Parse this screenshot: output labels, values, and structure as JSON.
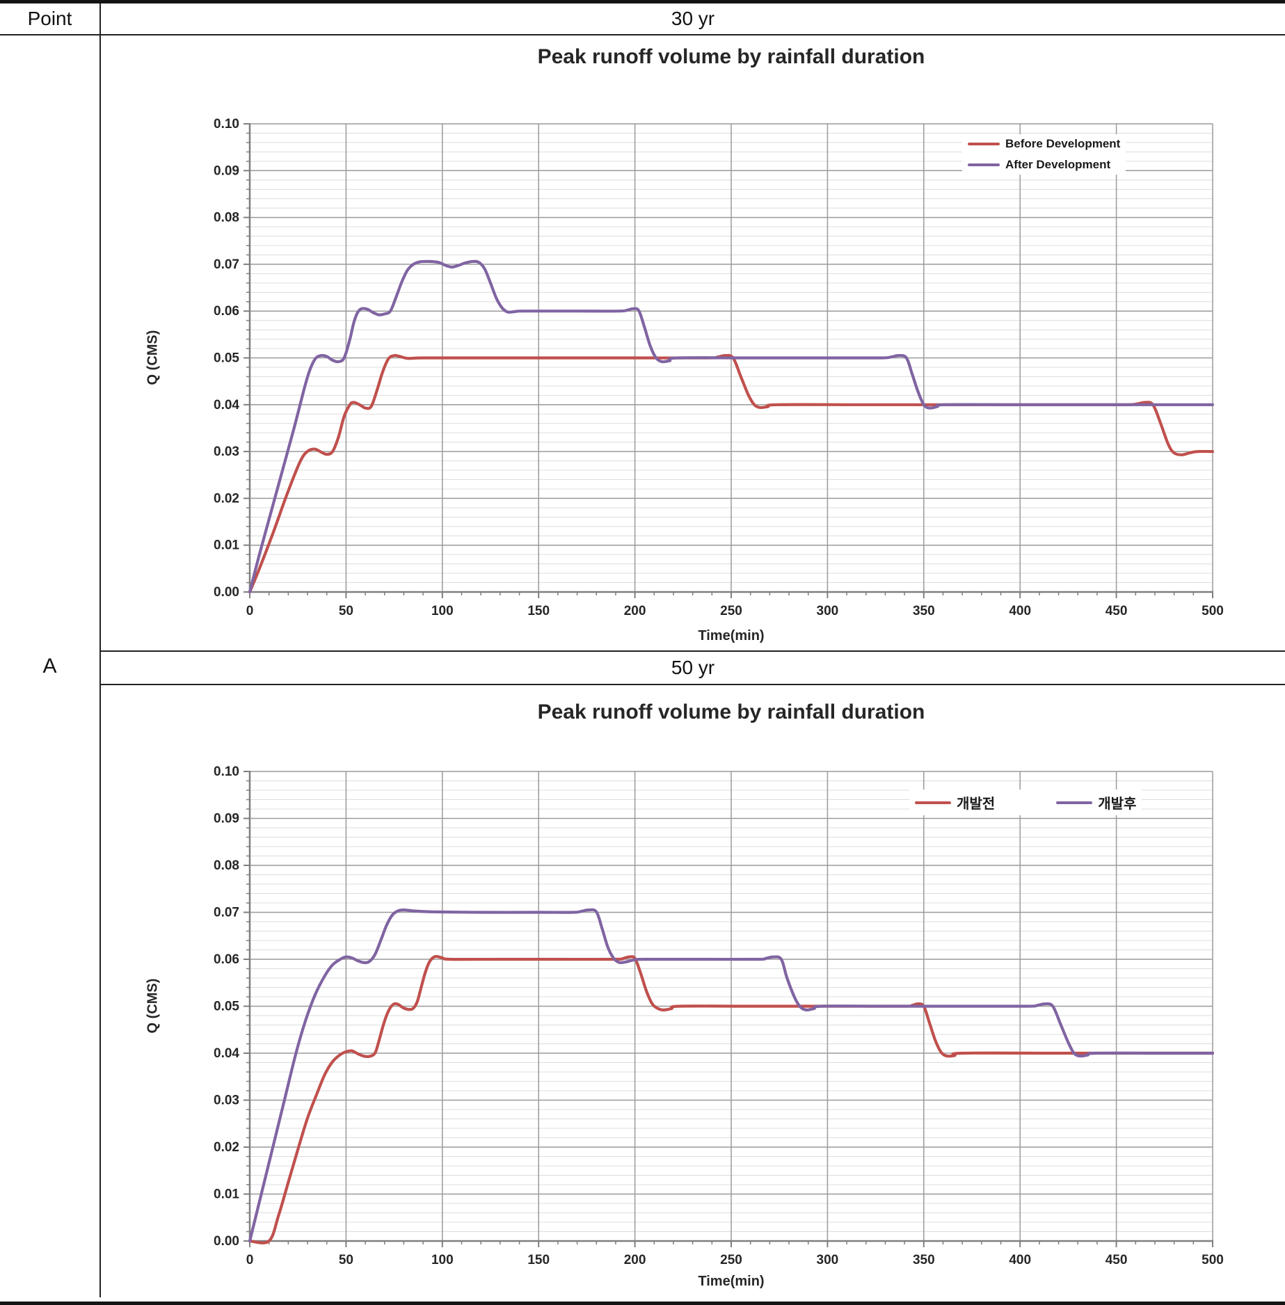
{
  "table": {
    "corner_header": "Point",
    "row_label": "A",
    "group_headers": [
      "30  yr",
      "50  yr"
    ]
  },
  "chart_data": [
    {
      "type": "line",
      "title": "Peak runoff volume by rainfall duration",
      "xlabel": "Time(min)",
      "ylabel": "Q (CMS)",
      "x_range": [
        0,
        500
      ],
      "y_range": [
        0,
        0.1
      ],
      "x_ticks": [
        "0",
        "50",
        "100",
        "150",
        "200",
        "250",
        "300",
        "350",
        "400",
        "450",
        "500"
      ],
      "y_ticks": [
        "0.00",
        "0.01",
        "0.02",
        "0.03",
        "0.04",
        "0.05",
        "0.06",
        "0.07",
        "0.08",
        "0.09",
        "0.10"
      ],
      "x_minor_step": 10,
      "y_minor_step": 0.002,
      "grid": "major-and-minor-horizontal, major-vertical",
      "legend_position": "top-right-stacked",
      "legend": [
        {
          "label": "Before Development",
          "color": "#C0504D"
        },
        {
          "label": "After Development",
          "color": "#8064A2"
        }
      ],
      "series": [
        {
          "name": "Before Development",
          "color": "#C0504D",
          "points": [
            [
              0,
              0
            ],
            [
              5,
              0.005
            ],
            [
              12,
              0.0125
            ],
            [
              19,
              0.0205
            ],
            [
              25,
              0.0268
            ],
            [
              28,
              0.0292
            ],
            [
              31,
              0.0303
            ],
            [
              34,
              0.0305
            ],
            [
              37,
              0.0299
            ],
            [
              40,
              0.0294
            ],
            [
              43,
              0.03
            ],
            [
              46,
              0.033
            ],
            [
              49,
              0.0375
            ],
            [
              52,
              0.04
            ],
            [
              54,
              0.0405
            ],
            [
              57,
              0.04
            ],
            [
              60,
              0.0393
            ],
            [
              63,
              0.0396
            ],
            [
              66,
              0.043
            ],
            [
              69,
              0.047
            ],
            [
              72,
              0.0498
            ],
            [
              75,
              0.0505
            ],
            [
              78,
              0.0503
            ],
            [
              82,
              0.0499
            ],
            [
              90,
              0.05
            ],
            [
              120,
              0.05
            ],
            [
              160,
              0.05
            ],
            [
              200,
              0.05
            ],
            [
              238,
              0.05
            ],
            [
              243,
              0.0502
            ],
            [
              247,
              0.0505
            ],
            [
              251,
              0.05
            ],
            [
              255,
              0.046
            ],
            [
              259,
              0.042
            ],
            [
              262,
              0.04
            ],
            [
              265,
              0.0394
            ],
            [
              269,
              0.0396
            ],
            [
              274,
              0.04
            ],
            [
              320,
              0.04
            ],
            [
              380,
              0.04
            ],
            [
              440,
              0.04
            ],
            [
              456,
              0.04
            ],
            [
              461,
              0.0402
            ],
            [
              465,
              0.0405
            ],
            [
              469,
              0.04
            ],
            [
              473,
              0.036
            ],
            [
              477,
              0.0315
            ],
            [
              480,
              0.0297
            ],
            [
              484,
              0.0293
            ],
            [
              488,
              0.0297
            ],
            [
              492,
              0.03
            ],
            [
              500,
              0.03
            ]
          ]
        },
        {
          "name": "After Development",
          "color": "#8064A2",
          "points": [
            [
              0,
              0
            ],
            [
              5,
              0.008
            ],
            [
              11,
              0.017
            ],
            [
              17,
              0.026
            ],
            [
              23,
              0.035
            ],
            [
              28,
              0.043
            ],
            [
              31,
              0.0472
            ],
            [
              34,
              0.0498
            ],
            [
              37,
              0.0505
            ],
            [
              40,
              0.0503
            ],
            [
              43,
              0.0495
            ],
            [
              46,
              0.0492
            ],
            [
              49,
              0.05
            ],
            [
              52,
              0.054
            ],
            [
              54,
              0.0575
            ],
            [
              56,
              0.0597
            ],
            [
              58,
              0.0605
            ],
            [
              61,
              0.0604
            ],
            [
              64,
              0.0597
            ],
            [
              67,
              0.0592
            ],
            [
              70,
              0.0594
            ],
            [
              73,
              0.06
            ],
            [
              76,
              0.063
            ],
            [
              79,
              0.0663
            ],
            [
              82,
              0.0688
            ],
            [
              85,
              0.07
            ],
            [
              88,
              0.0705
            ],
            [
              93,
              0.0706
            ],
            [
              98,
              0.0704
            ],
            [
              102,
              0.0697
            ],
            [
              105,
              0.0694
            ],
            [
              108,
              0.0697
            ],
            [
              112,
              0.0703
            ],
            [
              116,
              0.0706
            ],
            [
              119,
              0.0704
            ],
            [
              122,
              0.069
            ],
            [
              125,
              0.066
            ],
            [
              128,
              0.0628
            ],
            [
              131,
              0.0607
            ],
            [
              134,
              0.0598
            ],
            [
              138,
              0.0599
            ],
            [
              142,
              0.06
            ],
            [
              170,
              0.06
            ],
            [
              192,
              0.06
            ],
            [
              196,
              0.0602
            ],
            [
              199,
              0.0605
            ],
            [
              202,
              0.0601
            ],
            [
              205,
              0.0565
            ],
            [
              208,
              0.0525
            ],
            [
              211,
              0.05
            ],
            [
              214,
              0.0492
            ],
            [
              218,
              0.0494
            ],
            [
              222,
              0.05
            ],
            [
              260,
              0.05
            ],
            [
              300,
              0.05
            ],
            [
              328,
              0.05
            ],
            [
              333,
              0.0502
            ],
            [
              337,
              0.0505
            ],
            [
              341,
              0.05
            ],
            [
              344,
              0.0465
            ],
            [
              347,
              0.0428
            ],
            [
              350,
              0.04
            ],
            [
              353,
              0.0393
            ],
            [
              357,
              0.0396
            ],
            [
              361,
              0.04
            ],
            [
              400,
              0.04
            ],
            [
              450,
              0.04
            ],
            [
              500,
              0.04
            ]
          ]
        }
      ]
    },
    {
      "type": "line",
      "title": "Peak runoff volume by rainfall duration",
      "xlabel": "Time(min)",
      "ylabel": "Q (CMS)",
      "x_range": [
        0,
        500
      ],
      "y_range": [
        0,
        0.1
      ],
      "x_ticks": [
        "0",
        "50",
        "100",
        "150",
        "200",
        "250",
        "300",
        "350",
        "400",
        "450",
        "500"
      ],
      "y_ticks": [
        "0.00",
        "0.01",
        "0.02",
        "0.03",
        "0.04",
        "0.05",
        "0.06",
        "0.07",
        "0.08",
        "0.09",
        "0.10"
      ],
      "x_minor_step": 10,
      "y_minor_step": 0.002,
      "grid": "major-and-minor-horizontal, major-vertical",
      "legend_position": "top-right-horizontal",
      "legend": [
        {
          "label": "개발전",
          "color": "#C0504D"
        },
        {
          "label": "개발후",
          "color": "#8064A2"
        }
      ],
      "series": [
        {
          "name": "개발전",
          "color": "#C0504D",
          "points": [
            [
              0,
              0
            ],
            [
              10,
              0
            ],
            [
              15,
              0.0055
            ],
            [
              20,
              0.0125
            ],
            [
              25,
              0.0195
            ],
            [
              30,
              0.0262
            ],
            [
              35,
              0.0315
            ],
            [
              39,
              0.0355
            ],
            [
              43,
              0.0382
            ],
            [
              47,
              0.0397
            ],
            [
              50,
              0.0403
            ],
            [
              53,
              0.0405
            ],
            [
              56,
              0.0399
            ],
            [
              59,
              0.0394
            ],
            [
              62,
              0.0393
            ],
            [
              65,
              0.04
            ],
            [
              67,
              0.0425
            ],
            [
              69,
              0.0455
            ],
            [
              71,
              0.048
            ],
            [
              73,
              0.0497
            ],
            [
              75,
              0.0505
            ],
            [
              77,
              0.0504
            ],
            [
              80,
              0.0496
            ],
            [
              83,
              0.0493
            ],
            [
              85,
              0.0496
            ],
            [
              87,
              0.051
            ],
            [
              89,
              0.054
            ],
            [
              91,
              0.057
            ],
            [
              93,
              0.0592
            ],
            [
              95,
              0.0603
            ],
            [
              97,
              0.0606
            ],
            [
              100,
              0.0603
            ],
            [
              104,
              0.06
            ],
            [
              130,
              0.06
            ],
            [
              160,
              0.06
            ],
            [
              190,
              0.06
            ],
            [
              194,
              0.0602
            ],
            [
              197,
              0.0605
            ],
            [
              200,
              0.0602
            ],
            [
              203,
              0.057
            ],
            [
              206,
              0.0532
            ],
            [
              209,
              0.0505
            ],
            [
              212,
              0.0495
            ],
            [
              215,
              0.0492
            ],
            [
              219,
              0.0495
            ],
            [
              223,
              0.05
            ],
            [
              260,
              0.05
            ],
            [
              300,
              0.05
            ],
            [
              340,
              0.05
            ],
            [
              344,
              0.0502
            ],
            [
              347,
              0.0505
            ],
            [
              350,
              0.05
            ],
            [
              353,
              0.0464
            ],
            [
              356,
              0.0427
            ],
            [
              359,
              0.0402
            ],
            [
              362,
              0.0394
            ],
            [
              366,
              0.0395
            ],
            [
              370,
              0.04
            ],
            [
              420,
              0.04
            ],
            [
              470,
              0.04
            ],
            [
              500,
              0.04
            ]
          ]
        },
        {
          "name": "개발후",
          "color": "#8064A2",
          "points": [
            [
              0,
              0
            ],
            [
              6,
              0.01
            ],
            [
              12,
              0.02
            ],
            [
              18,
              0.03
            ],
            [
              24,
              0.04
            ],
            [
              29,
              0.047
            ],
            [
              34,
              0.0525
            ],
            [
              39,
              0.0565
            ],
            [
              43,
              0.0588
            ],
            [
              47,
              0.06
            ],
            [
              50,
              0.0605
            ],
            [
              53,
              0.0603
            ],
            [
              56,
              0.0597
            ],
            [
              59,
              0.0593
            ],
            [
              62,
              0.0595
            ],
            [
              65,
              0.061
            ],
            [
              68,
              0.064
            ],
            [
              71,
              0.0672
            ],
            [
              74,
              0.0694
            ],
            [
              77,
              0.0703
            ],
            [
              80,
              0.0705
            ],
            [
              85,
              0.0703
            ],
            [
              95,
              0.0701
            ],
            [
              120,
              0.07
            ],
            [
              150,
              0.07
            ],
            [
              168,
              0.07
            ],
            [
              172,
              0.0702
            ],
            [
              176,
              0.0705
            ],
            [
              180,
              0.0701
            ],
            [
              183,
              0.0665
            ],
            [
              186,
              0.0625
            ],
            [
              189,
              0.0602
            ],
            [
              192,
              0.0593
            ],
            [
              196,
              0.0595
            ],
            [
              200,
              0.0599
            ],
            [
              205,
              0.06
            ],
            [
              235,
              0.06
            ],
            [
              264,
              0.06
            ],
            [
              268,
              0.0602
            ],
            [
              272,
              0.0605
            ],
            [
              276,
              0.06
            ],
            [
              279,
              0.056
            ],
            [
              283,
              0.0518
            ],
            [
              286,
              0.0498
            ],
            [
              289,
              0.0492
            ],
            [
              293,
              0.0495
            ],
            [
              297,
              0.05
            ],
            [
              330,
              0.05
            ],
            [
              370,
              0.05
            ],
            [
              404,
              0.05
            ],
            [
              409,
              0.0502
            ],
            [
              413,
              0.0505
            ],
            [
              417,
              0.05
            ],
            [
              421,
              0.0462
            ],
            [
              425,
              0.0423
            ],
            [
              428,
              0.04
            ],
            [
              431,
              0.0394
            ],
            [
              435,
              0.0396
            ],
            [
              439,
              0.04
            ],
            [
              470,
              0.04
            ],
            [
              500,
              0.04
            ]
          ]
        }
      ]
    }
  ]
}
